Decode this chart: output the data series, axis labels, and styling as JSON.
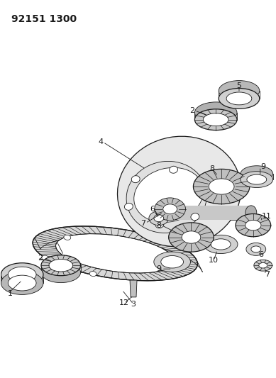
{
  "title": "92151 1300",
  "bg_color": "#ffffff",
  "line_color": "#1a1a1a",
  "title_fontsize": 10,
  "fig_width": 3.89,
  "fig_height": 5.33,
  "dpi": 100
}
